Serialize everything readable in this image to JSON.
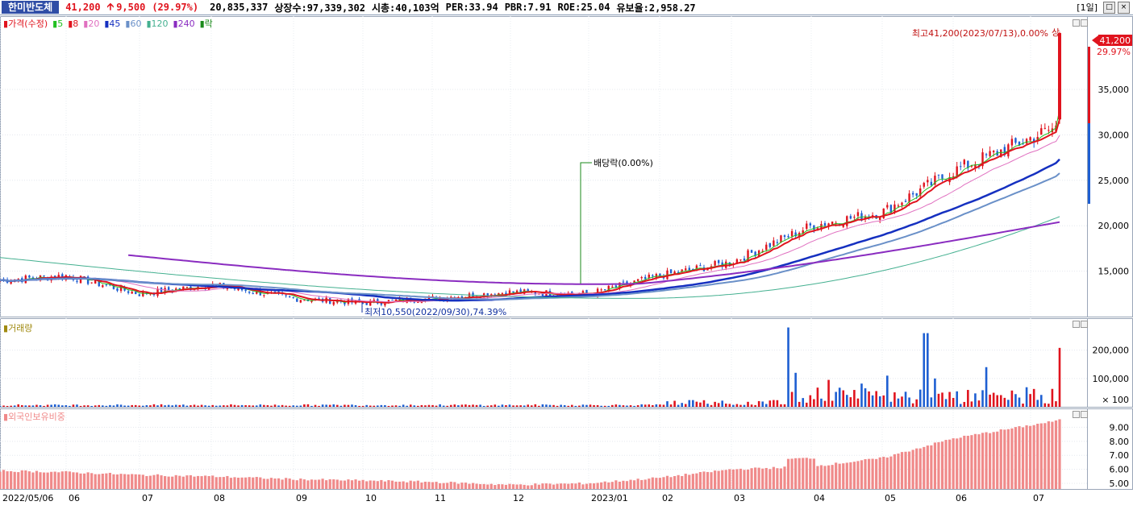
{
  "header": {
    "name": "한미반도체",
    "price": "41,200",
    "change": "9,500",
    "change_pct": "(29.97%)",
    "volume": "20,835,337",
    "listed": "상장수:97,339,302",
    "mcap": "시총:40,103억",
    "per": "PER:33.94",
    "pbr": "PBR:7.91",
    "roe": "ROE:25.04",
    "float": "유보율:2,958.27",
    "period": "[1일]"
  },
  "price_panel": {
    "legend": {
      "price": "가격(수정)",
      "ma5": "5",
      "ma8": "8",
      "ma20": "20",
      "ma45": "45",
      "ma60": "60",
      "ma120": "120",
      "ma240": "240",
      "drop": "락"
    },
    "high_label": "최고41,200(2023/07/13),0.00%",
    "high_mark": "상",
    "low_label": "최저10,550(2022/09/30),74.39%",
    "dividend_label": "배당락(0.00%)",
    "current_price_tag": "41,200",
    "current_pct_tag": "29.97%",
    "y_ticks": [
      "35,000",
      "30,000",
      "25,000",
      "20,000",
      "15,000"
    ]
  },
  "volume_panel": {
    "title": "거래량",
    "y_ticks": [
      "200,000",
      "100,000"
    ],
    "unit": "× 100"
  },
  "foreign_panel": {
    "title": "외국인보유비중",
    "y_ticks": [
      "9.00",
      "8.00",
      "7.00",
      "6.00",
      "5.00"
    ]
  },
  "x_axis": [
    "2022/05/06",
    "06",
    "07",
    "08",
    "09",
    "10",
    "11",
    "12",
    "2023/01",
    "02",
    "03",
    "04",
    "05",
    "06",
    "07"
  ],
  "colors": {
    "up": "#e0141e",
    "down": "#1e5fd2",
    "ma5": "#22c022",
    "ma8": "#e0141e",
    "ma20": "#e070c0",
    "ma45": "#1530c0",
    "ma60": "#6a90c8",
    "ma120": "#44b090",
    "ma240": "#8a2cc0",
    "foreign": "#f08a8a"
  },
  "chart_data": {
    "type": "line",
    "x": [
      "2022/05/06",
      "2022/06",
      "2022/07",
      "2022/08",
      "2022/09",
      "2022/10",
      "2022/11",
      "2022/12",
      "2023/01",
      "2023/02",
      "2023/03",
      "2023/04",
      "2023/05",
      "2023/06",
      "2023/07/13"
    ],
    "series": [
      {
        "name": "가격(수정)",
        "values": [
          14000,
          14500,
          12500,
          13500,
          12000,
          11500,
          12000,
          12700,
          12500,
          14500,
          16000,
          20000,
          21500,
          26000,
          41200
        ]
      },
      {
        "name": "외국인보유비중",
        "values": [
          5.9,
          5.8,
          5.6,
          5.5,
          5.3,
          5.2,
          5.1,
          4.9,
          5.0,
          5.4,
          6.0,
          6.2,
          6.8,
          8.2,
          9.5
        ]
      }
    ],
    "volume_marks": [
      {
        "x": "2023/03",
        "value": 280000
      },
      {
        "x": "2023/05",
        "value": 260000
      },
      {
        "x": "2023/06",
        "value": 140000
      },
      {
        "x": "2023/07/13",
        "value": 208000
      }
    ],
    "ylim_price": [
      10000,
      42000
    ],
    "ylim_volume": [
      0,
      290000
    ],
    "ylim_foreign": [
      4.6,
      10.0
    ],
    "high": {
      "value": 41200,
      "date": "2023/07/13"
    },
    "low": {
      "value": 10550,
      "date": "2022/09/30"
    }
  }
}
